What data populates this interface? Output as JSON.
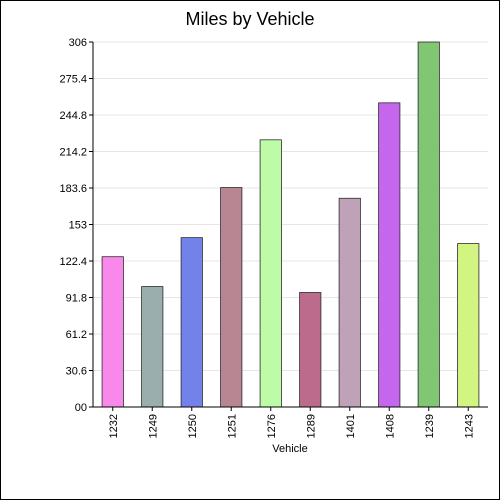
{
  "chart_data": {
    "type": "bar",
    "title": "Miles by Vehicle",
    "xlabel": "Vehicle",
    "ylabel": "",
    "categories": [
      "1232",
      "1249",
      "1250",
      "1251",
      "1276",
      "1289",
      "1401",
      "1408",
      "1239",
      "1243"
    ],
    "values": [
      126,
      101,
      142,
      184,
      224,
      96,
      175,
      255,
      306,
      137
    ],
    "colors": [
      "#f889ea",
      "#9aaeae",
      "#7382ea",
      "#b88692",
      "#bdfba6",
      "#bc6b8c",
      "#c0a2b8",
      "#c467ec",
      "#80c673",
      "#d2f581"
    ],
    "ylim": [
      0,
      306
    ],
    "yticks": [
      "00",
      "30.6",
      "61.2",
      "91.8",
      "122.4",
      "153",
      "183.6",
      "214.2",
      "244.8",
      "275.4",
      "306"
    ],
    "grid": true,
    "legend": "none"
  }
}
